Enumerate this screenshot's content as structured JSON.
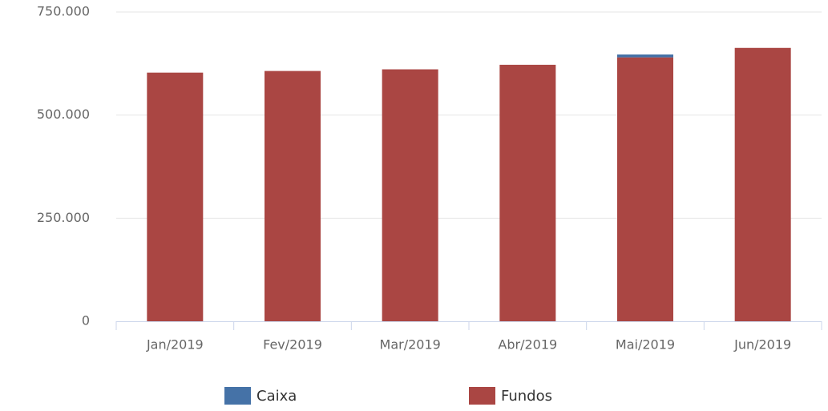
{
  "chart_data": {
    "type": "stacked_bar",
    "categories": [
      "Jan/2019",
      "Fev/2019",
      "Mar/2019",
      "Abr/2019",
      "Mai/2019",
      "Jun/2019"
    ],
    "series": [
      {
        "name": "Caixa",
        "color": "#4572a7",
        "values": [
          0,
          0,
          0,
          0,
          7000,
          0
        ]
      },
      {
        "name": "Fundos",
        "color": "#aa4643",
        "values": [
          603000,
          607000,
          611000,
          622000,
          640000,
          663000
        ]
      }
    ],
    "ylim": [
      0,
      750000
    ],
    "yticks": [
      0,
      {
        "value": 250000,
        "label": "250.000"
      },
      {
        "value": 500000,
        "label": "500.000"
      },
      {
        "value": 750000,
        "label": "750.000"
      }
    ],
    "grid": true
  }
}
